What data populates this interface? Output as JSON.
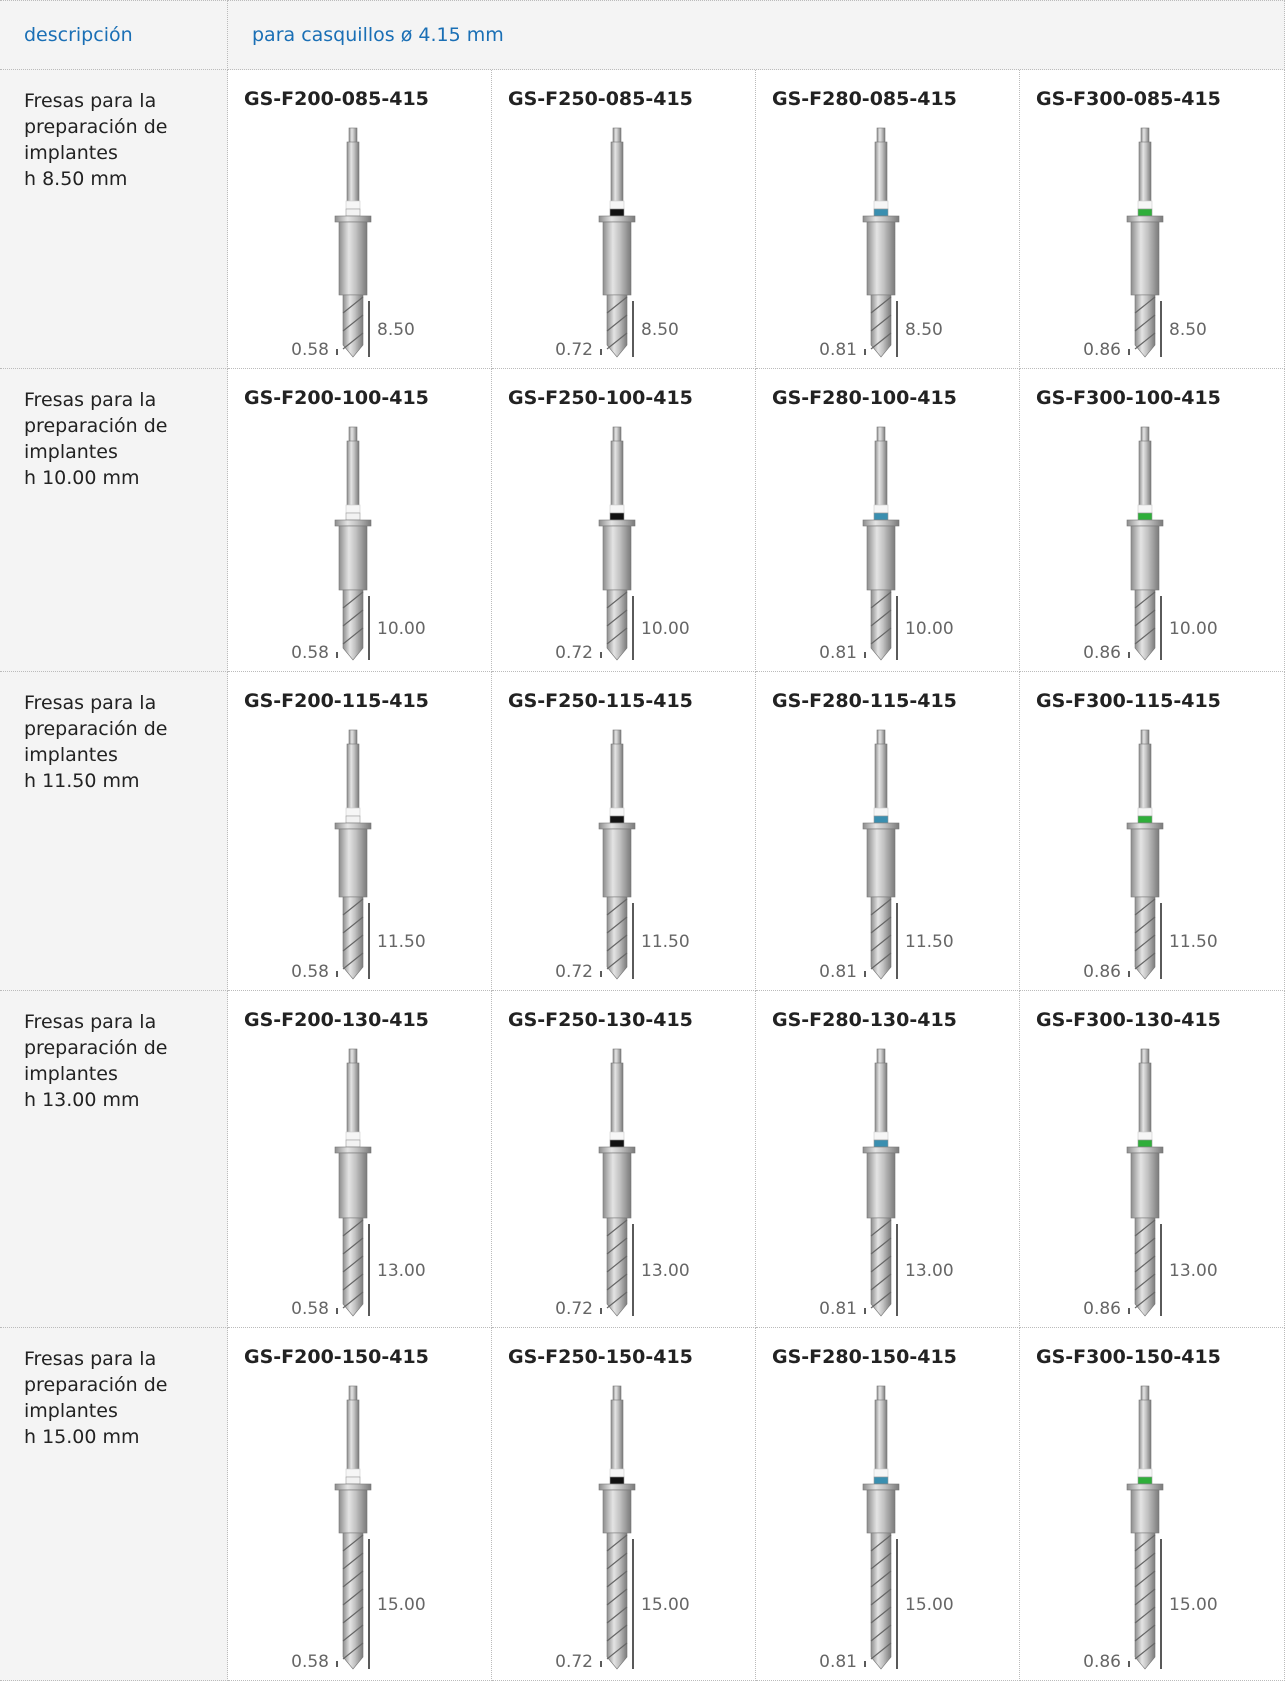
{
  "header": {
    "description": "descripción",
    "group": "para casquillos ø 4.15 mm"
  },
  "rows": [
    {
      "description": [
        "Fresas para la",
        "preparación de",
        "implantes",
        "h 8.50 mm"
      ],
      "items": [
        {
          "code": "GS-F200-085-415",
          "diameter": "0.58",
          "length": "8.50"
        },
        {
          "code": "GS-F250-085-415",
          "diameter": "0.72",
          "length": "8.50"
        },
        {
          "code": "GS-F280-085-415",
          "diameter": "0.81",
          "length": "8.50"
        },
        {
          "code": "GS-F300-085-415",
          "diameter": "0.86",
          "length": "8.50"
        }
      ]
    },
    {
      "description": [
        "Fresas para la",
        "preparación de",
        "implantes",
        "h 10.00 mm"
      ],
      "items": [
        {
          "code": "GS-F200-100-415",
          "diameter": "0.58",
          "length": "10.00"
        },
        {
          "code": "GS-F250-100-415",
          "diameter": "0.72",
          "length": "10.00"
        },
        {
          "code": "GS-F280-100-415",
          "diameter": "0.81",
          "length": "10.00"
        },
        {
          "code": "GS-F300-100-415",
          "diameter": "0.86",
          "length": "10.00"
        }
      ]
    },
    {
      "description": [
        "Fresas para la",
        "preparación de",
        "implantes",
        "h 11.50 mm"
      ],
      "items": [
        {
          "code": "GS-F200-115-415",
          "diameter": "0.58",
          "length": "11.50"
        },
        {
          "code": "GS-F250-115-415",
          "diameter": "0.72",
          "length": "11.50"
        },
        {
          "code": "GS-F280-115-415",
          "diameter": "0.81",
          "length": "11.50"
        },
        {
          "code": "GS-F300-115-415",
          "diameter": "0.86",
          "length": "11.50"
        }
      ]
    },
    {
      "description": [
        "Fresas para la",
        "preparación de",
        "implantes",
        "h 13.00 mm"
      ],
      "items": [
        {
          "code": "GS-F200-130-415",
          "diameter": "0.58",
          "length": "13.00"
        },
        {
          "code": "GS-F250-130-415",
          "diameter": "0.72",
          "length": "13.00"
        },
        {
          "code": "GS-F280-130-415",
          "diameter": "0.81",
          "length": "13.00"
        },
        {
          "code": "GS-F300-130-415",
          "diameter": "0.86",
          "length": "13.00"
        }
      ]
    },
    {
      "description": [
        "Fresas para la",
        "preparación de",
        "implantes",
        "h 15.00 mm"
      ],
      "items": [
        {
          "code": "GS-F200-150-415",
          "diameter": "0.58",
          "length": "15.00"
        },
        {
          "code": "GS-F250-150-415",
          "diameter": "0.72",
          "length": "15.00"
        },
        {
          "code": "GS-F280-150-415",
          "diameter": "0.81",
          "length": "15.00"
        },
        {
          "code": "GS-F300-150-415",
          "diameter": "0.86",
          "length": "15.00"
        }
      ]
    }
  ]
}
